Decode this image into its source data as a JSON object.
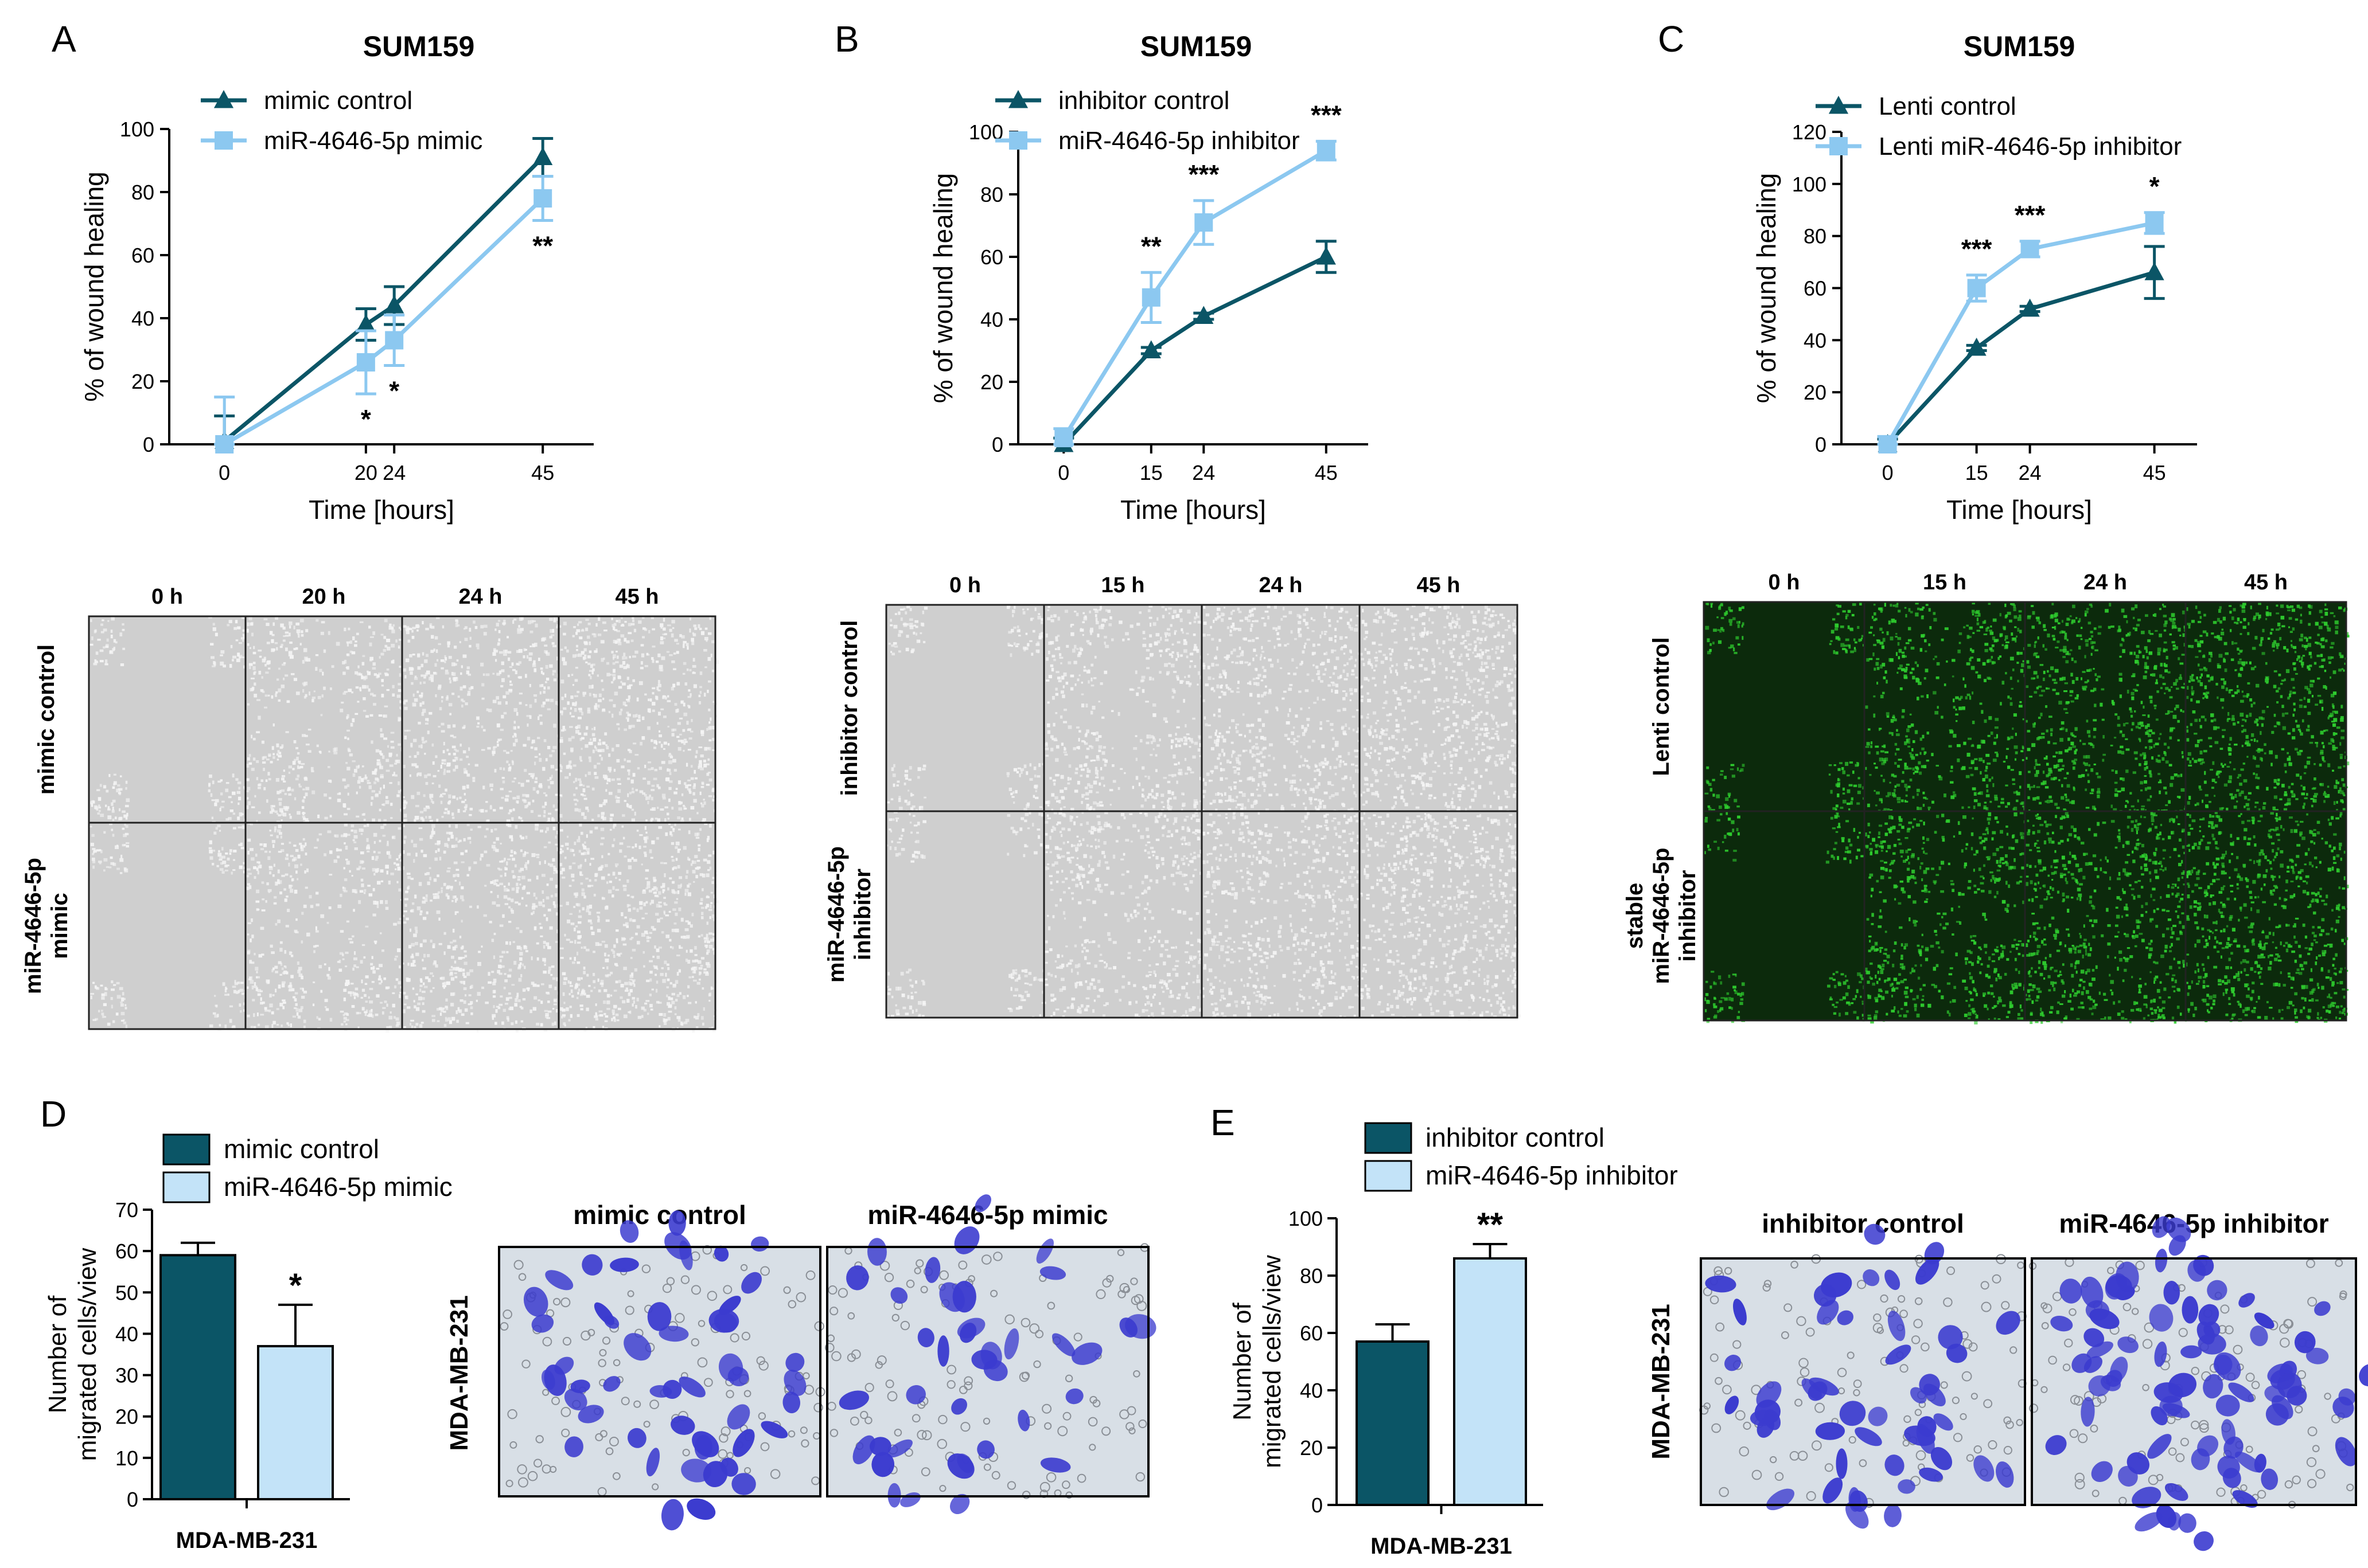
{
  "colors": {
    "control": "#0b5566",
    "treatment": "#8cc8f0",
    "treatment_bar": "#c3e3f8",
    "axis": "#000000",
    "bf_bg": "#cfcfcf",
    "bf_cell": "#f4f4f4",
    "gfp_bg": "#0c2a0c",
    "gfp_cell": "#2ecc2e",
    "stain_bg": "#d8dfe6",
    "stain_cell": "#3b3bcf"
  },
  "line_panels": [
    {
      "letter": "A",
      "title": "SUM159",
      "series_names": [
        "mimic control",
        "miR-4646-5p mimic"
      ]
    },
    {
      "letter": "B",
      "title": "SUM159",
      "series_names": [
        "inhibitor control",
        "miR-4646-5p inhibitor"
      ]
    },
    {
      "letter": "C",
      "title": "SUM159",
      "series_names": [
        "Lenti control",
        "Lenti miR-4646-5p inhibitor"
      ]
    }
  ],
  "image_grids": [
    {
      "col_labels": [
        "0 h",
        "20 h",
        "24 h",
        "45 h"
      ],
      "row_labels": [
        [
          "mimic control"
        ],
        [
          "miR-4646-5p",
          "mimic"
        ]
      ],
      "style": "bf"
    },
    {
      "col_labels": [
        "0 h",
        "15 h",
        "24 h",
        "45 h"
      ],
      "row_labels": [
        [
          "inhibitor control"
        ],
        [
          "miR-4646-5p",
          "inhibitor"
        ]
      ],
      "style": "bf"
    },
    {
      "col_labels": [
        "0 h",
        "15 h",
        "24 h",
        "45 h"
      ],
      "row_labels": [
        [
          "Lenti control"
        ],
        [
          "stable",
          "miR-4646-5p",
          "inhibitor"
        ]
      ],
      "style": "gfp"
    }
  ],
  "bar_panels": [
    {
      "letter": "D",
      "series_names": [
        "mimic control",
        "miR-4646-5p mimic"
      ],
      "ylabel_lines": [
        "Number of",
        "migrated cells/view"
      ],
      "xlabel": "MDA-MB-231"
    },
    {
      "letter": "E",
      "series_names": [
        "inhibitor control",
        "miR-4646-5p inhibitor"
      ],
      "ylabel_lines": [
        "Number of",
        "migrated cells/view"
      ],
      "xlabel": "MDA-MB-231"
    }
  ],
  "stain_panels": [
    {
      "side_label": "MDA-MB-231",
      "titles": [
        "mimic control",
        "miR-4646-5p mimic"
      ]
    },
    {
      "side_label": "MDA-MB-231",
      "titles": [
        "inhibitor control",
        "miR-4646-5p inhibitor"
      ]
    }
  ],
  "chart_data": [
    {
      "type": "line",
      "panel": "A",
      "title": "SUM159",
      "xlabel": "Time [hours]",
      "ylabel": "% of wound healing",
      "x": [
        0,
        20,
        24,
        45
      ],
      "xticks": [
        0,
        20,
        24,
        45
      ],
      "ylim": [
        0,
        100
      ],
      "yticks": [
        0,
        20,
        40,
        60,
        80,
        100
      ],
      "series": [
        {
          "name": "mimic control",
          "values": [
            1,
            38,
            44,
            91
          ],
          "errors": [
            8,
            5,
            6,
            6
          ]
        },
        {
          "name": "miR-4646-5p mimic",
          "values": [
            0,
            26,
            33,
            78
          ],
          "errors": [
            15,
            10,
            8,
            7
          ]
        }
      ],
      "significance": [
        "",
        "*",
        "*",
        "**"
      ]
    },
    {
      "type": "line",
      "panel": "B",
      "title": "SUM159",
      "xlabel": "Time [hours]",
      "ylabel": "% of wound healing",
      "x": [
        0,
        15,
        24,
        45
      ],
      "xticks": [
        0,
        15,
        24,
        45
      ],
      "ylim": [
        0,
        100
      ],
      "yticks": [
        0,
        20,
        40,
        60,
        80,
        100
      ],
      "series": [
        {
          "name": "inhibitor control",
          "values": [
            0,
            30,
            41,
            60
          ],
          "errors": [
            2,
            1,
            1,
            5
          ]
        },
        {
          "name": "miR-4646-5p inhibitor",
          "values": [
            2,
            47,
            71,
            94
          ],
          "errors": [
            3,
            8,
            7,
            3
          ]
        }
      ],
      "significance": [
        "",
        "**",
        "***",
        "***"
      ]
    },
    {
      "type": "line",
      "panel": "C",
      "title": "SUM159",
      "xlabel": "Time [hours]",
      "ylabel": "% of wound healing",
      "x": [
        0,
        15,
        24,
        45
      ],
      "xticks": [
        0,
        15,
        24,
        45
      ],
      "ylim": [
        0,
        120
      ],
      "yticks": [
        0,
        20,
        40,
        60,
        80,
        100,
        120
      ],
      "series": [
        {
          "name": "Lenti control",
          "values": [
            0,
            37,
            52,
            66
          ],
          "errors": [
            2,
            1,
            1,
            10
          ]
        },
        {
          "name": "Lenti miR-4646-5p inhibitor",
          "values": [
            0,
            60,
            75,
            85
          ],
          "errors": [
            3,
            5,
            3,
            4
          ]
        }
      ],
      "significance": [
        "",
        "***",
        "***",
        "*"
      ]
    },
    {
      "type": "bar",
      "panel": "D",
      "categories": [
        "mimic control",
        "miR-4646-5p mimic"
      ],
      "values": [
        59,
        37
      ],
      "errors": [
        3,
        10
      ],
      "xlabel": "MDA-MB-231",
      "ylabel": "Number of migrated cells/view",
      "ylim": [
        0,
        70
      ],
      "yticks": [
        0,
        10,
        20,
        30,
        40,
        50,
        60,
        70
      ],
      "significance": [
        "",
        "*"
      ]
    },
    {
      "type": "bar",
      "panel": "E",
      "categories": [
        "inhibitor control",
        "miR-4646-5p inhibitor"
      ],
      "values": [
        57,
        86
      ],
      "errors": [
        6,
        5
      ],
      "xlabel": "MDA-MB-231",
      "ylabel": "Number of migrated cells/view",
      "ylim": [
        0,
        100
      ],
      "yticks": [
        0,
        20,
        40,
        60,
        80,
        100
      ],
      "significance": [
        "",
        "**"
      ]
    }
  ]
}
